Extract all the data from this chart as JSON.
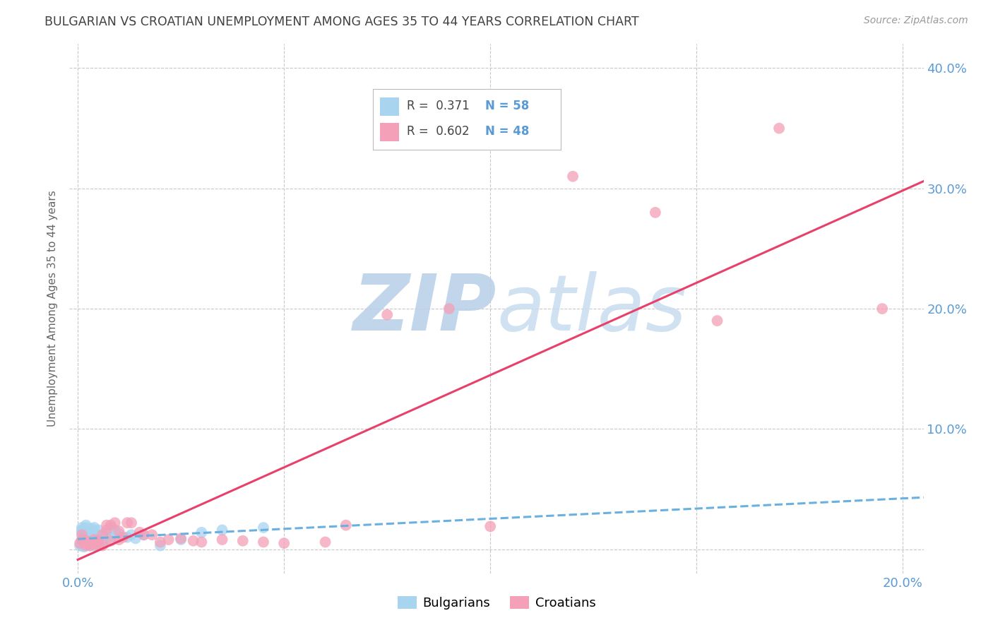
{
  "title": "BULGARIAN VS CROATIAN UNEMPLOYMENT AMONG AGES 35 TO 44 YEARS CORRELATION CHART",
  "source": "Source: ZipAtlas.com",
  "xlim": [
    -0.002,
    0.205
  ],
  "ylim": [
    -0.02,
    0.42
  ],
  "R_bulgarian": 0.371,
  "N_bulgarian": 58,
  "R_croatian": 0.602,
  "N_croatian": 48,
  "color_bulgarian": "#a8d4f0",
  "color_croatian": "#f4a0b8",
  "line_color_bulgarian": "#6ab0e0",
  "line_color_croatian": "#e8406a",
  "bg_color": "#ffffff",
  "grid_color": "#c8c8c8",
  "title_color": "#404040",
  "axis_label_color": "#5b9bd5",
  "watermark_color": "#ccddf0",
  "ylabel": "Unemployment Among Ages 35 to 44 years",
  "bulgarians_x": [
    0.0005,
    0.001,
    0.001,
    0.001,
    0.001,
    0.001,
    0.001,
    0.0015,
    0.0015,
    0.0015,
    0.002,
    0.002,
    0.002,
    0.002,
    0.002,
    0.002,
    0.002,
    0.0025,
    0.0025,
    0.003,
    0.003,
    0.003,
    0.003,
    0.003,
    0.003,
    0.0035,
    0.0035,
    0.004,
    0.004,
    0.004,
    0.004,
    0.004,
    0.004,
    0.005,
    0.005,
    0.005,
    0.005,
    0.005,
    0.006,
    0.006,
    0.006,
    0.007,
    0.007,
    0.008,
    0.008,
    0.009,
    0.009,
    0.01,
    0.01,
    0.012,
    0.013,
    0.014,
    0.016,
    0.02,
    0.025,
    0.03,
    0.035,
    0.045
  ],
  "bulgarians_y": [
    0.003,
    0.018,
    0.016,
    0.014,
    0.008,
    0.005,
    0.003,
    0.004,
    0.006,
    0.002,
    0.005,
    0.006,
    0.007,
    0.009,
    0.012,
    0.018,
    0.02,
    0.004,
    0.006,
    0.003,
    0.004,
    0.005,
    0.007,
    0.009,
    0.012,
    0.015,
    0.017,
    0.003,
    0.005,
    0.006,
    0.007,
    0.009,
    0.018,
    0.004,
    0.006,
    0.008,
    0.012,
    0.016,
    0.005,
    0.007,
    0.009,
    0.008,
    0.014,
    0.016,
    0.018,
    0.01,
    0.016,
    0.01,
    0.013,
    0.01,
    0.012,
    0.009,
    0.012,
    0.003,
    0.008,
    0.014,
    0.016,
    0.018
  ],
  "croatians_x": [
    0.0005,
    0.001,
    0.001,
    0.0015,
    0.002,
    0.002,
    0.0025,
    0.003,
    0.003,
    0.0035,
    0.004,
    0.004,
    0.005,
    0.005,
    0.006,
    0.006,
    0.007,
    0.007,
    0.008,
    0.008,
    0.009,
    0.01,
    0.01,
    0.011,
    0.012,
    0.013,
    0.015,
    0.016,
    0.018,
    0.02,
    0.022,
    0.025,
    0.028,
    0.03,
    0.035,
    0.04,
    0.045,
    0.05,
    0.06,
    0.065,
    0.075,
    0.09,
    0.1,
    0.12,
    0.14,
    0.155,
    0.17,
    0.195
  ],
  "croatians_y": [
    0.005,
    0.008,
    0.012,
    0.006,
    0.003,
    0.007,
    0.005,
    0.003,
    0.006,
    0.005,
    0.004,
    0.008,
    0.004,
    0.007,
    0.003,
    0.012,
    0.016,
    0.02,
    0.007,
    0.02,
    0.022,
    0.008,
    0.015,
    0.01,
    0.022,
    0.022,
    0.014,
    0.012,
    0.012,
    0.006,
    0.008,
    0.009,
    0.007,
    0.006,
    0.008,
    0.007,
    0.006,
    0.005,
    0.006,
    0.02,
    0.195,
    0.2,
    0.019,
    0.31,
    0.28,
    0.19,
    0.35,
    0.2
  ]
}
